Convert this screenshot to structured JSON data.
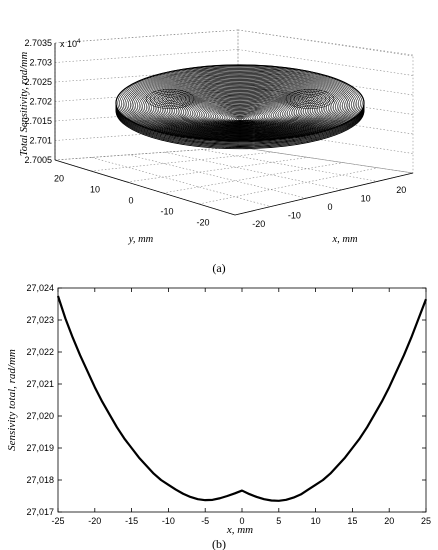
{
  "chart_data": [
    {
      "id": "a",
      "type": "surface-3d-contour",
      "caption": "(a)",
      "title": "",
      "zlabel": "Total Sensitivity, rad/mm",
      "xlabel": "x, mm",
      "ylabel": "y, mm",
      "z_multiplier": "x 10",
      "z_multiplier_exp": "4",
      "z_ticks": [
        "2.7005",
        "2.701",
        "2.7015",
        "2.702",
        "2.7025",
        "2.703",
        "2.7035"
      ],
      "x_ticks": [
        "-20",
        "-10",
        "0",
        "10",
        "20"
      ],
      "y_ticks": [
        "20",
        "10",
        "0",
        "-10",
        "-20"
      ],
      "zlim": [
        2.7005,
        2.7035
      ],
      "xlim": [
        -25,
        25
      ],
      "ylim": [
        -25,
        25
      ],
      "grid": true
    },
    {
      "id": "b",
      "type": "line",
      "caption": "(b)",
      "title": "",
      "xlabel": "x, mm",
      "ylabel": "Sensivity total, rad/mm",
      "xlim": [
        -25,
        25
      ],
      "ylim": [
        27017,
        27024
      ],
      "x_ticks": [
        "-25",
        "-20",
        "-15",
        "-10",
        "-5",
        "0",
        "5",
        "10",
        "15",
        "20",
        "25"
      ],
      "y_ticks": [
        "27,017",
        "27,018",
        "27,019",
        "27,020",
        "27,021",
        "27,022",
        "27,023",
        "27,024"
      ],
      "series": [
        {
          "x": [
            -25,
            -24,
            -23,
            -22,
            -21,
            -20,
            -19,
            -18,
            -17,
            -16,
            -15,
            -14,
            -13,
            -12,
            -11,
            -10,
            -9,
            -8,
            -7,
            -6,
            -5,
            -4,
            -3,
            -2,
            -1,
            0,
            1,
            2,
            3,
            4,
            5,
            6,
            7,
            8,
            9,
            10,
            11,
            12,
            13,
            14,
            15,
            16,
            17,
            18,
            19,
            20,
            21,
            22,
            23,
            24,
            25
          ],
          "y": [
            27023.75,
            27023.05,
            27022.45,
            27021.9,
            27021.4,
            27020.9,
            27020.45,
            27020.05,
            27019.65,
            27019.3,
            27019.0,
            27018.7,
            27018.45,
            27018.2,
            27018.0,
            27017.85,
            27017.7,
            27017.57,
            27017.47,
            27017.4,
            27017.37,
            27017.38,
            27017.43,
            27017.5,
            27017.58,
            27017.67,
            27017.56,
            27017.47,
            27017.4,
            27017.36,
            27017.35,
            27017.38,
            27017.45,
            27017.55,
            27017.7,
            27017.85,
            27018.0,
            27018.2,
            27018.45,
            27018.7,
            27019.0,
            27019.3,
            27019.65,
            27020.05,
            27020.45,
            27020.9,
            27021.4,
            27021.9,
            27022.45,
            27023.05,
            27023.65
          ]
        }
      ]
    }
  ]
}
